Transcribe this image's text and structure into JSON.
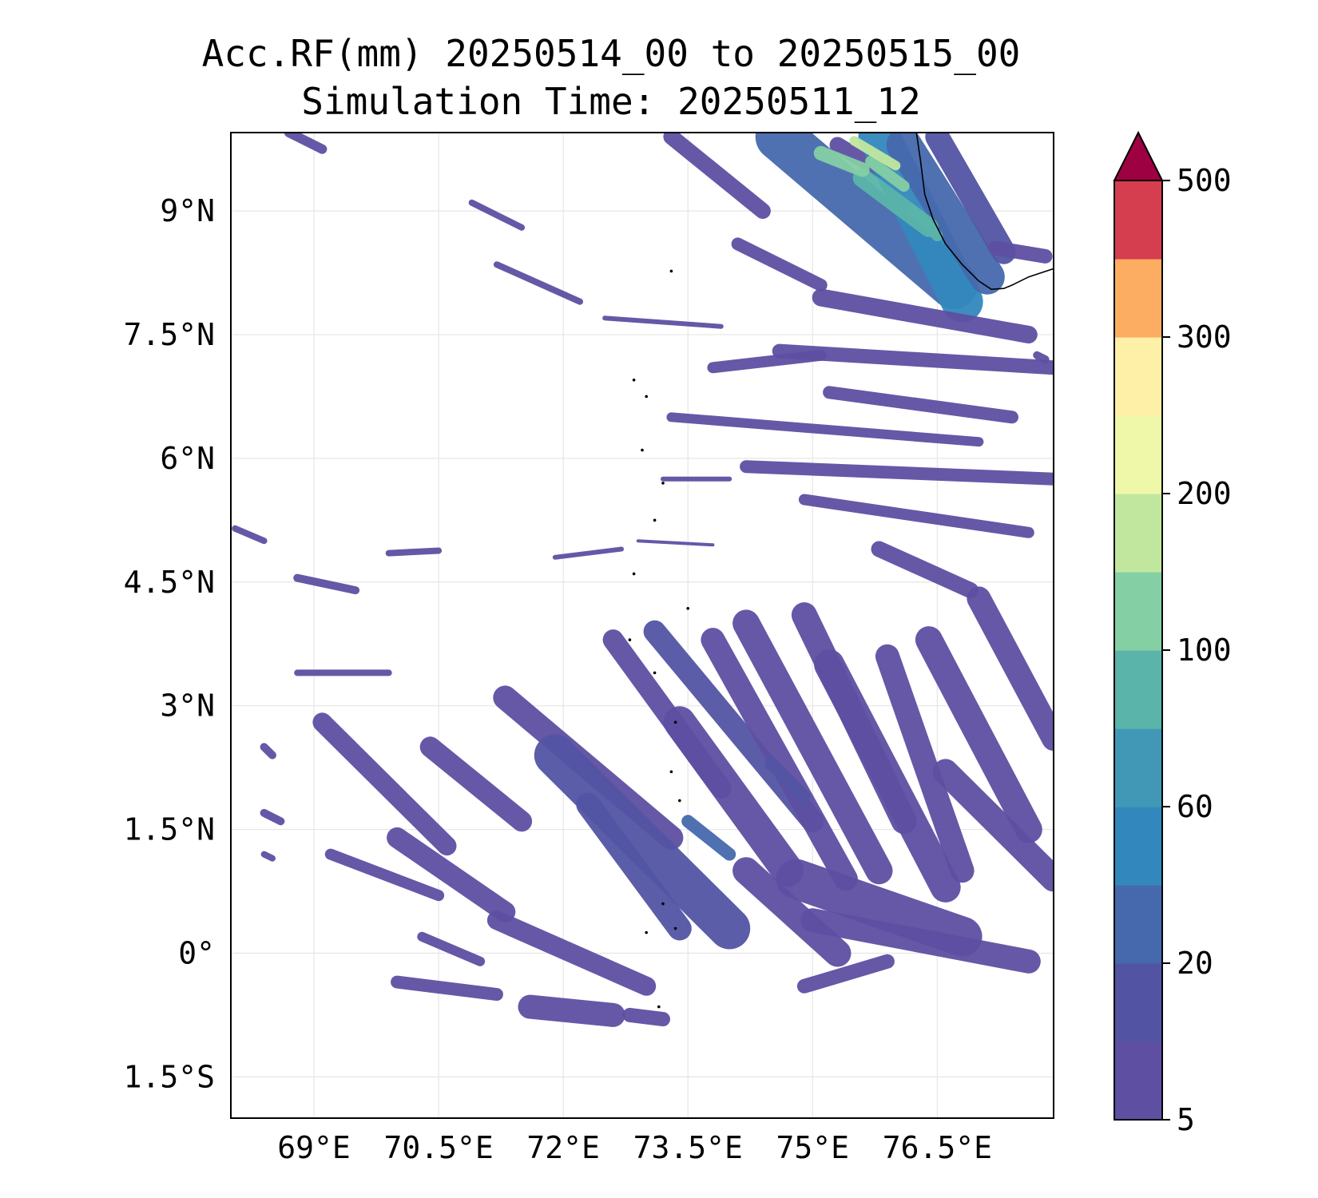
{
  "title_line1": "Acc.RF(mm) 20250514_00 to 20250515_00",
  "title_line2": "Simulation Time: 20250511_12",
  "map": {
    "lon_range": [
      68.0,
      77.9
    ],
    "lat_range": [
      -2.0,
      9.95
    ],
    "lon_ticks": [
      {
        "value": 69.0,
        "label": "69°E"
      },
      {
        "value": 70.5,
        "label": "70.5°E"
      },
      {
        "value": 72.0,
        "label": "72°E"
      },
      {
        "value": 73.5,
        "label": "73.5°E"
      },
      {
        "value": 75.0,
        "label": "75°E"
      },
      {
        "value": 76.5,
        "label": "76.5°E"
      }
    ],
    "lat_ticks": [
      {
        "value": 9.0,
        "label": "9°N"
      },
      {
        "value": 7.5,
        "label": "7.5°N"
      },
      {
        "value": 6.0,
        "label": "6°N"
      },
      {
        "value": 4.5,
        "label": "4.5°N"
      },
      {
        "value": 3.0,
        "label": "3°N"
      },
      {
        "value": 1.5,
        "label": "1.5°N"
      },
      {
        "value": 0.0,
        "label": "0°"
      },
      {
        "value": -1.5,
        "label": "1.5°S"
      }
    ],
    "gridlines": true
  },
  "colorbar": {
    "levels": [
      5,
      10,
      20,
      40,
      60,
      80,
      100,
      150,
      200,
      250,
      300,
      400,
      500
    ],
    "colors": [
      "#5e4fa2",
      "#5254a3",
      "#4669ad",
      "#3288bd",
      "#4198b6",
      "#5bb4a9",
      "#84cfa4",
      "#c1e79f",
      "#eef8a8",
      "#fff0a8",
      "#fdad61",
      "#d53e4f"
    ],
    "extend_color": "#9e0142",
    "tick_labels": [
      {
        "value": 5,
        "label": "5"
      },
      {
        "value": 20,
        "label": "20"
      },
      {
        "value": 60,
        "label": "60"
      },
      {
        "value": 100,
        "label": "100"
      },
      {
        "value": 200,
        "label": "200"
      },
      {
        "value": 300,
        "label": "300"
      },
      {
        "value": 500,
        "label": "500"
      }
    ]
  },
  "land": {
    "coastline_india": [
      [
        76.25,
        9.95
      ],
      [
        76.3,
        9.6
      ],
      [
        76.35,
        9.2
      ],
      [
        76.45,
        8.9
      ],
      [
        76.6,
        8.6
      ],
      [
        76.8,
        8.35
      ],
      [
        77.0,
        8.15
      ],
      [
        77.15,
        8.05
      ],
      [
        77.3,
        8.06
      ],
      [
        77.4,
        8.1
      ],
      [
        77.6,
        8.2
      ],
      [
        77.9,
        8.3
      ]
    ],
    "islands": [
      [
        73.3,
        8.27
      ],
      [
        72.85,
        6.95
      ],
      [
        73.0,
        6.75
      ],
      [
        72.95,
        6.1
      ],
      [
        73.2,
        5.7
      ],
      [
        73.1,
        5.25
      ],
      [
        73.5,
        4.18
      ],
      [
        73.1,
        3.4
      ],
      [
        73.35,
        2.8
      ],
      [
        73.3,
        2.2
      ],
      [
        73.4,
        1.85
      ],
      [
        73.2,
        0.6
      ],
      [
        73.0,
        0.25
      ],
      [
        73.15,
        -0.65
      ],
      [
        73.35,
        0.3
      ],
      [
        72.8,
        3.8
      ],
      [
        72.85,
        4.6
      ]
    ]
  },
  "rain_bands": [
    {
      "pts": [
        [
          68.7,
          9.95
        ],
        [
          69.1,
          9.75
        ]
      ],
      "w": 12,
      "lvl": 0
    },
    {
      "pts": [
        [
          70.9,
          9.1
        ],
        [
          71.5,
          8.8
        ]
      ],
      "w": 8,
      "lvl": 0
    },
    {
      "pts": [
        [
          71.2,
          8.35
        ],
        [
          72.2,
          7.9
        ]
      ],
      "w": 8,
      "lvl": 0
    },
    {
      "pts": [
        [
          72.5,
          7.7
        ],
        [
          73.9,
          7.6
        ]
      ],
      "w": 6,
      "lvl": 0
    },
    {
      "pts": [
        [
          73.8,
          7.1
        ],
        [
          75.1,
          7.25
        ]
      ],
      "w": 14,
      "lvl": 0
    },
    {
      "pts": [
        [
          74.6,
          7.3
        ],
        [
          77.9,
          7.1
        ]
      ],
      "w": 18,
      "lvl": 0
    },
    {
      "pts": [
        [
          75.2,
          6.8
        ],
        [
          77.4,
          6.5
        ]
      ],
      "w": 16,
      "lvl": 0
    },
    {
      "pts": [
        [
          73.3,
          6.5
        ],
        [
          77.0,
          6.2
        ]
      ],
      "w": 12,
      "lvl": 0
    },
    {
      "pts": [
        [
          74.2,
          5.9
        ],
        [
          77.9,
          5.75
        ]
      ],
      "w": 16,
      "lvl": 0
    },
    {
      "pts": [
        [
          74.9,
          5.5
        ],
        [
          77.6,
          5.1
        ]
      ],
      "w": 14,
      "lvl": 0
    },
    {
      "pts": [
        [
          75.8,
          4.9
        ],
        [
          76.9,
          4.4
        ]
      ],
      "w": 20,
      "lvl": 0
    },
    {
      "pts": [
        [
          71.9,
          4.8
        ],
        [
          72.7,
          4.9
        ]
      ],
      "w": 6,
      "lvl": 0
    },
    {
      "pts": [
        [
          69.9,
          4.85
        ],
        [
          70.5,
          4.88
        ]
      ],
      "w": 8,
      "lvl": 0
    },
    {
      "pts": [
        [
          68.8,
          4.55
        ],
        [
          69.5,
          4.4
        ]
      ],
      "w": 10,
      "lvl": 0
    },
    {
      "pts": [
        [
          73.2,
          5.75
        ],
        [
          74.0,
          5.75
        ]
      ],
      "w": 6,
      "lvl": 0
    },
    {
      "pts": [
        [
          72.9,
          5.0
        ],
        [
          73.8,
          4.95
        ]
      ],
      "w": 4,
      "lvl": 0
    },
    {
      "pts": [
        [
          68.05,
          5.15
        ],
        [
          68.4,
          5.0
        ]
      ],
      "w": 8,
      "lvl": 0
    },
    {
      "pts": [
        [
          68.8,
          3.4
        ],
        [
          69.9,
          3.4
        ]
      ],
      "w": 8,
      "lvl": 0
    },
    {
      "pts": [
        [
          69.1,
          2.8
        ],
        [
          70.6,
          1.3
        ]
      ],
      "w": 24,
      "lvl": 0
    },
    {
      "pts": [
        [
          70.4,
          2.5
        ],
        [
          71.5,
          1.6
        ]
      ],
      "w": 26,
      "lvl": 0
    },
    {
      "pts": [
        [
          71.3,
          3.1
        ],
        [
          73.3,
          1.4
        ]
      ],
      "w": 30,
      "lvl": 0
    },
    {
      "pts": [
        [
          71.9,
          2.4
        ],
        [
          74.0,
          0.3
        ]
      ],
      "w": 52,
      "lvl": 1
    },
    {
      "pts": [
        [
          70.0,
          1.4
        ],
        [
          71.3,
          0.5
        ]
      ],
      "w": 26,
      "lvl": 0
    },
    {
      "pts": [
        [
          69.2,
          1.2
        ],
        [
          70.5,
          0.7
        ]
      ],
      "w": 14,
      "lvl": 0
    },
    {
      "pts": [
        [
          72.3,
          1.8
        ],
        [
          73.4,
          0.3
        ]
      ],
      "w": 30,
      "lvl": 1
    },
    {
      "pts": [
        [
          73.4,
          2.8
        ],
        [
          74.7,
          1.0
        ]
      ],
      "w": 40,
      "lvl": 0
    },
    {
      "pts": [
        [
          72.6,
          3.8
        ],
        [
          73.9,
          2.0
        ]
      ],
      "w": 26,
      "lvl": 0
    },
    {
      "pts": [
        [
          73.1,
          3.9
        ],
        [
          75.0,
          1.6
        ]
      ],
      "w": 28,
      "lvl": 1
    },
    {
      "pts": [
        [
          73.8,
          3.8
        ],
        [
          75.4,
          0.9
        ]
      ],
      "w": 30,
      "lvl": 0
    },
    {
      "pts": [
        [
          74.2,
          4.0
        ],
        [
          75.8,
          1.0
        ]
      ],
      "w": 34,
      "lvl": 0
    },
    {
      "pts": [
        [
          74.9,
          4.1
        ],
        [
          76.1,
          1.6
        ]
      ],
      "w": 32,
      "lvl": 0
    },
    {
      "pts": [
        [
          75.2,
          3.5
        ],
        [
          76.6,
          0.8
        ]
      ],
      "w": 38,
      "lvl": 0
    },
    {
      "pts": [
        [
          75.9,
          3.6
        ],
        [
          76.8,
          1.0
        ]
      ],
      "w": 30,
      "lvl": 0
    },
    {
      "pts": [
        [
          76.4,
          3.8
        ],
        [
          77.6,
          1.5
        ]
      ],
      "w": 34,
      "lvl": 0
    },
    {
      "pts": [
        [
          77.0,
          4.3
        ],
        [
          77.9,
          2.6
        ]
      ],
      "w": 30,
      "lvl": 0
    },
    {
      "pts": [
        [
          74.8,
          0.9
        ],
        [
          76.8,
          0.2
        ]
      ],
      "w": 50,
      "lvl": 0
    },
    {
      "pts": [
        [
          76.6,
          2.2
        ],
        [
          77.9,
          0.9
        ]
      ],
      "w": 32,
      "lvl": 0
    },
    {
      "pts": [
        [
          75.0,
          0.4
        ],
        [
          77.6,
          -0.1
        ]
      ],
      "w": 30,
      "lvl": 0
    },
    {
      "pts": [
        [
          74.2,
          1.0
        ],
        [
          75.3,
          0.0
        ]
      ],
      "w": 34,
      "lvl": 0
    },
    {
      "pts": [
        [
          71.2,
          0.4
        ],
        [
          73.0,
          -0.4
        ]
      ],
      "w": 24,
      "lvl": 0
    },
    {
      "pts": [
        [
          71.6,
          -0.65
        ],
        [
          72.6,
          -0.75
        ]
      ],
      "w": 30,
      "lvl": 0
    },
    {
      "pts": [
        [
          72.8,
          -0.75
        ],
        [
          73.2,
          -0.8
        ]
      ],
      "w": 18,
      "lvl": 0
    },
    {
      "pts": [
        [
          70.0,
          -0.35
        ],
        [
          71.2,
          -0.5
        ]
      ],
      "w": 16,
      "lvl": 0
    },
    {
      "pts": [
        [
          75.9,
          -0.1
        ],
        [
          74.9,
          -0.4
        ]
      ],
      "w": 18,
      "lvl": 0
    },
    {
      "pts": [
        [
          75.3,
          9.8
        ],
        [
          75.8,
          9.5
        ]
      ],
      "w": 20,
      "lvl": 0
    },
    {
      "pts": [
        [
          73.3,
          9.9
        ],
        [
          74.4,
          9.0
        ]
      ],
      "w": 20,
      "lvl": 0
    },
    {
      "pts": [
        [
          74.1,
          8.6
        ],
        [
          75.1,
          8.1
        ]
      ],
      "w": 16,
      "lvl": 0
    },
    {
      "pts": [
        [
          74.6,
          9.9
        ],
        [
          76.7,
          8.1
        ]
      ],
      "w": 60,
      "lvl": 2
    },
    {
      "pts": [
        [
          75.8,
          9.9
        ],
        [
          76.8,
          7.9
        ]
      ],
      "w": 52,
      "lvl": 3
    },
    {
      "pts": [
        [
          76.1,
          9.8
        ],
        [
          77.1,
          8.2
        ]
      ],
      "w": 44,
      "lvl": 2
    },
    {
      "pts": [
        [
          75.6,
          9.4
        ],
        [
          76.4,
          8.8
        ]
      ],
      "w": 24,
      "lvl": 5
    },
    {
      "pts": [
        [
          75.7,
          9.6
        ],
        [
          76.1,
          9.3
        ]
      ],
      "w": 14,
      "lvl": 6
    },
    {
      "pts": [
        [
          75.1,
          9.7
        ],
        [
          75.6,
          9.5
        ]
      ],
      "w": 18,
      "lvl": 6
    },
    {
      "pts": [
        [
          76.2,
          9.0
        ],
        [
          76.5,
          8.7
        ]
      ],
      "w": 14,
      "lvl": 5
    },
    {
      "pts": [
        [
          75.5,
          9.85
        ],
        [
          76.0,
          9.55
        ]
      ],
      "w": 12,
      "lvl": 7
    },
    {
      "pts": [
        [
          76.5,
          9.9
        ],
        [
          77.3,
          8.5
        ]
      ],
      "w": 30,
      "lvl": 1
    },
    {
      "pts": [
        [
          75.1,
          7.95
        ],
        [
          77.6,
          7.5
        ]
      ],
      "w": 22,
      "lvl": 0
    },
    {
      "pts": [
        [
          77.2,
          8.55
        ],
        [
          77.8,
          8.45
        ]
      ],
      "w": 18,
      "lvl": 0
    },
    {
      "pts": [
        [
          77.7,
          7.25
        ],
        [
          77.8,
          7.2
        ]
      ],
      "w": 10,
      "lvl": 0
    },
    {
      "pts": [
        [
          70.3,
          0.2
        ],
        [
          71.0,
          -0.1
        ]
      ],
      "w": 12,
      "lvl": 0
    },
    {
      "pts": [
        [
          68.4,
          2.5
        ],
        [
          68.5,
          2.4
        ]
      ],
      "w": 10,
      "lvl": 0
    },
    {
      "pts": [
        [
          68.4,
          1.7
        ],
        [
          68.6,
          1.6
        ]
      ],
      "w": 10,
      "lvl": 0
    },
    {
      "pts": [
        [
          68.4,
          1.2
        ],
        [
          68.5,
          1.15
        ]
      ],
      "w": 8,
      "lvl": 0
    },
    {
      "pts": [
        [
          74.5,
          2.3
        ],
        [
          74.9,
          1.9
        ]
      ],
      "w": 16,
      "lvl": 1
    },
    {
      "pts": [
        [
          73.5,
          1.6
        ],
        [
          74.0,
          1.2
        ]
      ],
      "w": 16,
      "lvl": 2
    }
  ]
}
